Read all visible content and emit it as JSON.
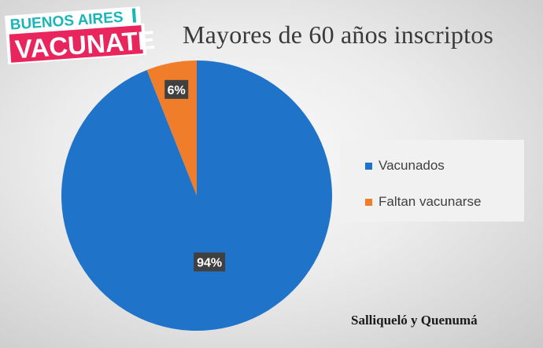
{
  "logo": {
    "line1": "BUENOS AIRES",
    "line2": "VACUNATE"
  },
  "colors": {
    "vacunados": "#1f73c9",
    "faltan": "#f07d2a",
    "label_bg": "#404040",
    "logo_teal": "#19b5b8",
    "logo_pink": "#e8255d"
  },
  "chart_data": {
    "type": "pie",
    "title": "Mayores de 60 años inscriptos",
    "categories": [
      "Vacunados",
      "Faltan vacunarse"
    ],
    "values": [
      94,
      6
    ],
    "data_labels": [
      "94%",
      "6%"
    ],
    "legend_position": "right"
  },
  "footnote": "Salliqueló  y Quenumá"
}
